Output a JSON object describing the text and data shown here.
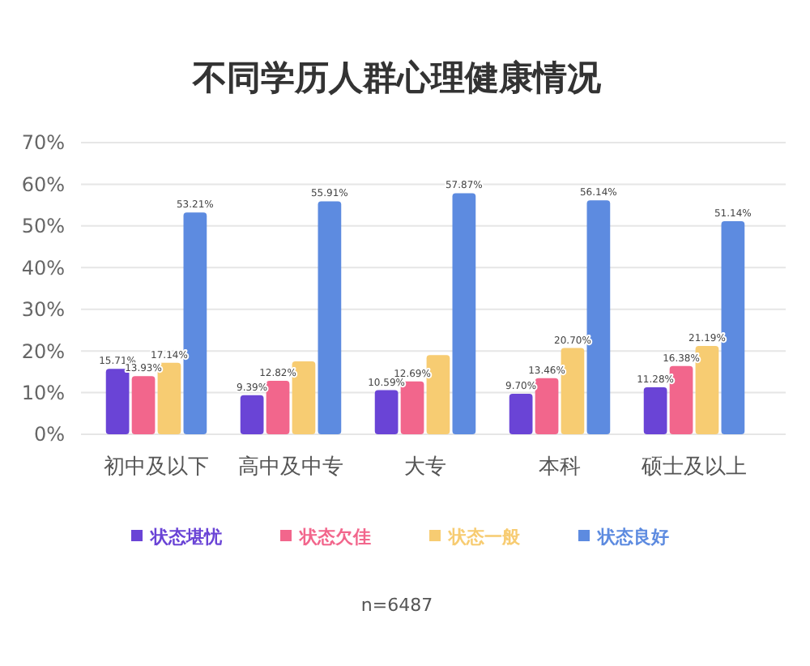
{
  "chart_data": {
    "type": "bar",
    "title": "不同学历人群心理健康情况",
    "categories": [
      "初中及以下",
      "高中及中专",
      "大专",
      "本科",
      "硕士及以上"
    ],
    "series": [
      {
        "name": "状态堪忧",
        "color": "#6a44d6",
        "values": [
          15.71,
          9.39,
          10.59,
          9.7,
          11.28
        ],
        "value_labels": [
          "15.71%",
          "9.39%",
          "10.59%",
          "9.70%",
          "11.28%"
        ]
      },
      {
        "name": "状态欠佳",
        "color": "#f2668c",
        "values": [
          13.93,
          12.82,
          12.69,
          13.46,
          16.38
        ],
        "value_labels": [
          "13.93%",
          "12.82%",
          "12.69%",
          "13.46%",
          "16.38%"
        ]
      },
      {
        "name": "状态一般",
        "color": "#f7cc72",
        "values": [
          17.14,
          17.5,
          19,
          20.7,
          21.19
        ],
        "value_labels": [
          "17.14%",
          null,
          null,
          "20.70%",
          "21.19%"
        ]
      },
      {
        "name": "状态良好",
        "color": "#5d8be0",
        "values": [
          53.21,
          55.91,
          57.87,
          56.14,
          51.14
        ],
        "value_labels": [
          "53.21%",
          "55.91%",
          "57.87%",
          "56.14%",
          "51.14%"
        ]
      }
    ],
    "ylim": [
      0,
      70
    ],
    "yticks": [
      {
        "value": 0,
        "label": "0%"
      },
      {
        "value": 10,
        "label": "10%"
      },
      {
        "value": 20,
        "label": "20%"
      },
      {
        "value": 30,
        "label": "30%"
      },
      {
        "value": 40,
        "label": "40%"
      },
      {
        "value": 50,
        "label": "50%"
      },
      {
        "value": 60,
        "label": "60%"
      },
      {
        "value": 70,
        "label": "70%"
      }
    ],
    "grid": "y",
    "legend": "bottom",
    "annotations": [
      "n=6487"
    ]
  }
}
